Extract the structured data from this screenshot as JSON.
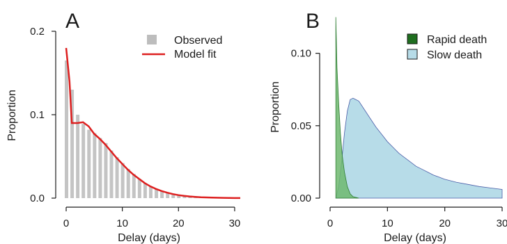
{
  "figure": {
    "panels": [
      {
        "letter": "A",
        "xlabel": "Delay (days)",
        "ylabel": "Proportion",
        "xticks": [
          "0",
          "10",
          "20",
          "30"
        ],
        "yticks": [
          "0.0",
          "0.1",
          "0.2"
        ],
        "legend": [
          "Observed",
          "Model fit"
        ]
      },
      {
        "letter": "B",
        "xlabel": "Delay (days)",
        "ylabel": "Proportion",
        "xticks": [
          "0",
          "10",
          "20",
          "30"
        ],
        "yticks": [
          "0.00",
          "0.05",
          "0.10"
        ],
        "legend": [
          "Rapid death",
          "Slow death"
        ]
      }
    ]
  },
  "chart_data": [
    {
      "type": "bar",
      "panel": "A",
      "xlabel": "Delay (days)",
      "ylabel": "Proportion",
      "xlim": [
        0,
        31
      ],
      "ylim": [
        0,
        0.2
      ],
      "x": [
        0,
        1,
        2,
        3,
        4,
        5,
        6,
        7,
        8,
        9,
        10,
        11,
        12,
        13,
        14,
        15,
        16,
        17,
        18,
        19,
        20,
        21,
        22,
        23,
        24,
        25,
        26,
        27,
        28,
        29,
        30
      ],
      "series": [
        {
          "name": "Observed",
          "type": "bar",
          "color": "#c4c4c4",
          "values": [
            0.165,
            0.13,
            0.1,
            0.089,
            0.082,
            0.078,
            0.072,
            0.066,
            0.057,
            0.049,
            0.042,
            0.035,
            0.029,
            0.023,
            0.018,
            0.014,
            0.011,
            0.008,
            0.006,
            0.004,
            0.003,
            0.002,
            0.0015,
            0.001,
            0.0008,
            0.0006,
            0.0004,
            0.0003,
            0.0002,
            0.0001,
            0.0001
          ]
        },
        {
          "name": "Model fit",
          "type": "line",
          "color": "#dd1f1f",
          "points": [
            [
              0,
              0.18
            ],
            [
              0.3,
              0.16
            ],
            [
              0.6,
              0.14
            ],
            [
              1,
              0.09
            ],
            [
              2,
              0.09
            ],
            [
              3,
              0.091
            ],
            [
              4,
              0.086
            ],
            [
              5,
              0.077
            ],
            [
              6,
              0.071
            ],
            [
              7,
              0.064
            ],
            [
              8,
              0.056
            ],
            [
              9,
              0.048
            ],
            [
              10,
              0.041
            ],
            [
              11,
              0.034
            ],
            [
              12,
              0.028
            ],
            [
              13,
              0.023
            ],
            [
              14,
              0.018
            ],
            [
              15,
              0.014
            ],
            [
              16,
              0.011
            ],
            [
              17,
              0.0085
            ],
            [
              18,
              0.0065
            ],
            [
              19,
              0.0048
            ],
            [
              20,
              0.0036
            ],
            [
              21,
              0.0027
            ],
            [
              22,
              0.002
            ],
            [
              23,
              0.0015
            ],
            [
              24,
              0.0011
            ],
            [
              25,
              0.0008
            ],
            [
              26,
              0.0006
            ],
            [
              28,
              0.0003
            ],
            [
              30,
              0.0001
            ],
            [
              31,
              0.0001
            ]
          ]
        }
      ]
    },
    {
      "type": "area",
      "panel": "B",
      "xlabel": "Delay (days)",
      "ylabel": "Proportion",
      "xlim": [
        0,
        30
      ],
      "ylim": [
        0,
        0.12
      ],
      "series": [
        {
          "name": "Rapid death",
          "color": "#2e7d32",
          "fill": "#7cbf7c",
          "points": [
            [
              1,
              0.125
            ],
            [
              1.2,
              0.09
            ],
            [
              1.5,
              0.065
            ],
            [
              1.8,
              0.045
            ],
            [
              2.1,
              0.03
            ],
            [
              2.5,
              0.018
            ],
            [
              3,
              0.008
            ],
            [
              3.5,
              0.003
            ],
            [
              4,
              0.001
            ],
            [
              5,
              0
            ]
          ]
        },
        {
          "name": "Slow death",
          "color": "#4a5da8",
          "fill": "#b7dce8",
          "points": [
            [
              1,
              0
            ],
            [
              1.5,
              0.008
            ],
            [
              2,
              0.025
            ],
            [
              2.5,
              0.045
            ],
            [
              3,
              0.06
            ],
            [
              3.5,
              0.068
            ],
            [
              4,
              0.069
            ],
            [
              5,
              0.067
            ],
            [
              6,
              0.061
            ],
            [
              7,
              0.055
            ],
            [
              8,
              0.049
            ],
            [
              9,
              0.044
            ],
            [
              10,
              0.039
            ],
            [
              11,
              0.035
            ],
            [
              12,
              0.031
            ],
            [
              13,
              0.028
            ],
            [
              14,
              0.025
            ],
            [
              15,
              0.022
            ],
            [
              16,
              0.02
            ],
            [
              17,
              0.018
            ],
            [
              18,
              0.016
            ],
            [
              19,
              0.0145
            ],
            [
              20,
              0.013
            ],
            [
              22,
              0.011
            ],
            [
              24,
              0.0095
            ],
            [
              26,
              0.008
            ],
            [
              28,
              0.007
            ],
            [
              30,
              0.006
            ]
          ]
        }
      ]
    }
  ]
}
